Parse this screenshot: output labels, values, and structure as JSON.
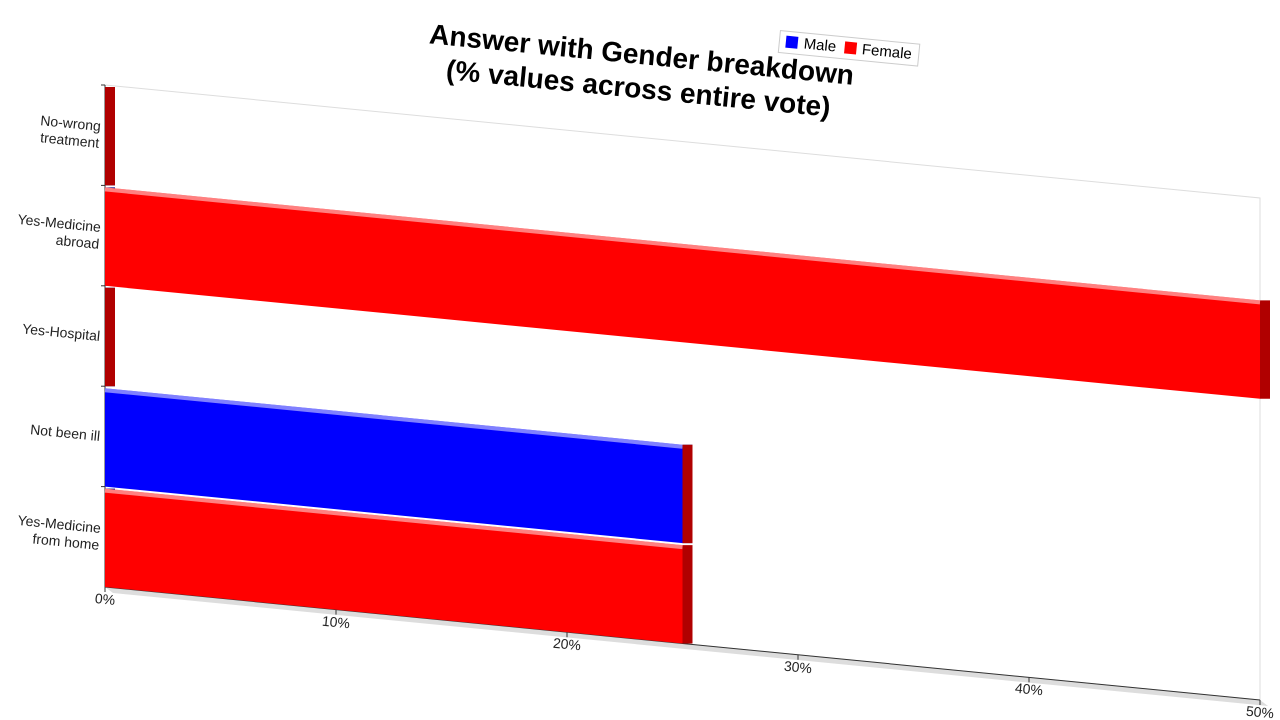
{
  "chart_data": {
    "type": "bar",
    "stacked": true,
    "orientation": "horizontal",
    "title": "Answer with Gender breakdown\n(% values across entire vote)",
    "categories": [
      "No-wrong treatment",
      "Yes-Medicine abroad",
      "Yes-Hospital",
      "Not been ill",
      "Yes-Medicine from home"
    ],
    "series": [
      {
        "name": "Male",
        "color": "#0000ff",
        "values": [
          0,
          0,
          0,
          25,
          0
        ]
      },
      {
        "name": "Female",
        "color": "#ff0000",
        "values": [
          0,
          50,
          0,
          0,
          25
        ]
      }
    ],
    "xlim": [
      0,
      50
    ],
    "xticks": [
      {
        "value": 0,
        "label": "0%"
      },
      {
        "value": 10,
        "label": "10%"
      },
      {
        "value": 20,
        "label": "20%"
      },
      {
        "value": 30,
        "label": "30%"
      },
      {
        "value": 40,
        "label": "40%"
      },
      {
        "value": 50,
        "label": "50%"
      }
    ],
    "legend": "top-right"
  }
}
